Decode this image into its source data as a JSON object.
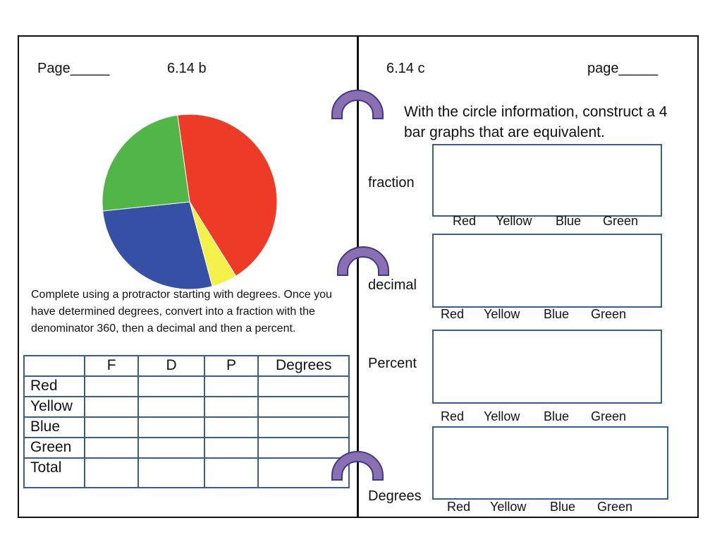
{
  "left_page": {
    "page_label": "Page_____",
    "lesson": "6.14 b",
    "instructions": "Complete using a protractor starting with degrees. Once you have determined degrees, convert into a fraction with the denominator 360, then a decimal and then a percent.",
    "table": {
      "headers": [
        "",
        "F",
        "D",
        "P",
        "Degrees"
      ],
      "rows": [
        "Red",
        "Yellow",
        "Blue",
        "Green",
        "Total"
      ]
    }
  },
  "right_page": {
    "lesson": "6.14 c",
    "page_label": "page_____",
    "prompt": "With the circle information, construct a 4 bar graphs that are equivalent.",
    "graphs": [
      {
        "label": "fraction",
        "categories": [
          "Red",
          "Yellow",
          "Blue",
          "Green"
        ]
      },
      {
        "label": "decimal",
        "categories": [
          "Red",
          "Yellow",
          "Blue",
          "Green"
        ]
      },
      {
        "label": "Percent",
        "categories": [
          "Red",
          "Yellow",
          "Blue",
          "Green"
        ]
      },
      {
        "label": "Degrees",
        "categories": [
          "Red",
          "Yellow",
          "Blue",
          "Green"
        ]
      }
    ]
  },
  "colors": {
    "red": "#ee3b28",
    "yellow": "#f3f04a",
    "blue": "#3550a4",
    "green": "#52b548",
    "ring": "#8b6fb3",
    "box_border": "#3b5e86"
  },
  "pie_chart": {
    "type": "pie",
    "slices": [
      {
        "label": "Red",
        "degrees": 156
      },
      {
        "label": "Yellow",
        "degrees": 17
      },
      {
        "label": "Blue",
        "degrees": 99
      },
      {
        "label": "Green",
        "degrees": 88
      }
    ]
  }
}
